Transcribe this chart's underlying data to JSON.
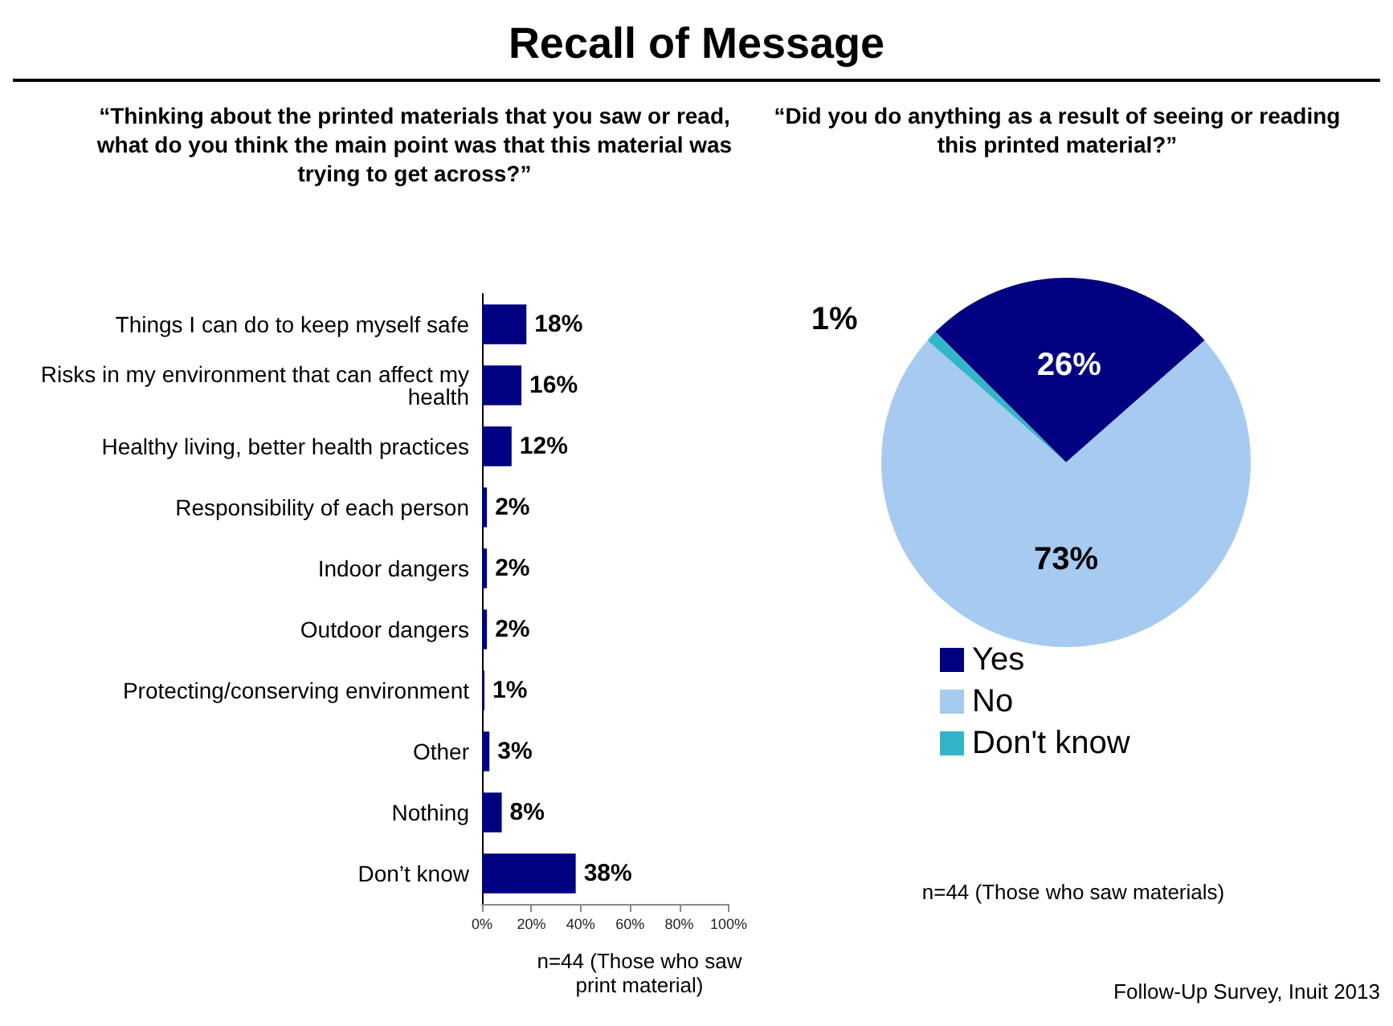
{
  "chart_data": [
    {
      "type": "bar",
      "orientation": "horizontal",
      "title": "Recall of Message",
      "subtitle": "“Thinking about the printed materials that you saw or read, what do you think the main point was that this material was trying to get across?”",
      "categories": [
        "Things I can do to keep myself safe",
        "Risks in my environment that can affect my health",
        "Healthy living, better health practices",
        "Responsibility of each person",
        "Indoor dangers",
        "Outdoor dangers",
        "Protecting/conserving environment",
        "Other",
        "Nothing",
        "Don’t know"
      ],
      "values": [
        18,
        16,
        12,
        2,
        2,
        2,
        1,
        3,
        8,
        38
      ],
      "value_labels": [
        "18%",
        "16%",
        "12%",
        "2%",
        "2%",
        "2%",
        "1%",
        "3%",
        "8%",
        "38%"
      ],
      "color": "#000080",
      "xlim": [
        0,
        100
      ],
      "xticks": [
        {
          "value": 0,
          "label": "0%"
        },
        {
          "value": 20,
          "label": "20%"
        },
        {
          "value": 40,
          "label": "40%"
        },
        {
          "value": 60,
          "label": "60%"
        },
        {
          "value": 80,
          "label": "80%"
        },
        {
          "value": 100,
          "label": "100%"
        }
      ],
      "annotations": [
        "n=44 (Those who saw print material)"
      ]
    },
    {
      "type": "pie",
      "subtitle": "“Did you do anything as a result of seeing or reading this printed material?”",
      "categories": [
        "Yes",
        "No",
        "Don't know"
      ],
      "values": [
        26,
        73,
        1
      ],
      "value_labels": [
        "26%",
        "73%",
        "1%"
      ],
      "colors": [
        "#000080",
        "#a6caf0",
        "#33b5c8"
      ],
      "legend": "bottom",
      "annotations": [
        "n=44 (Those who saw materials)",
        "Follow-Up Survey, Inuit 2013"
      ]
    }
  ]
}
